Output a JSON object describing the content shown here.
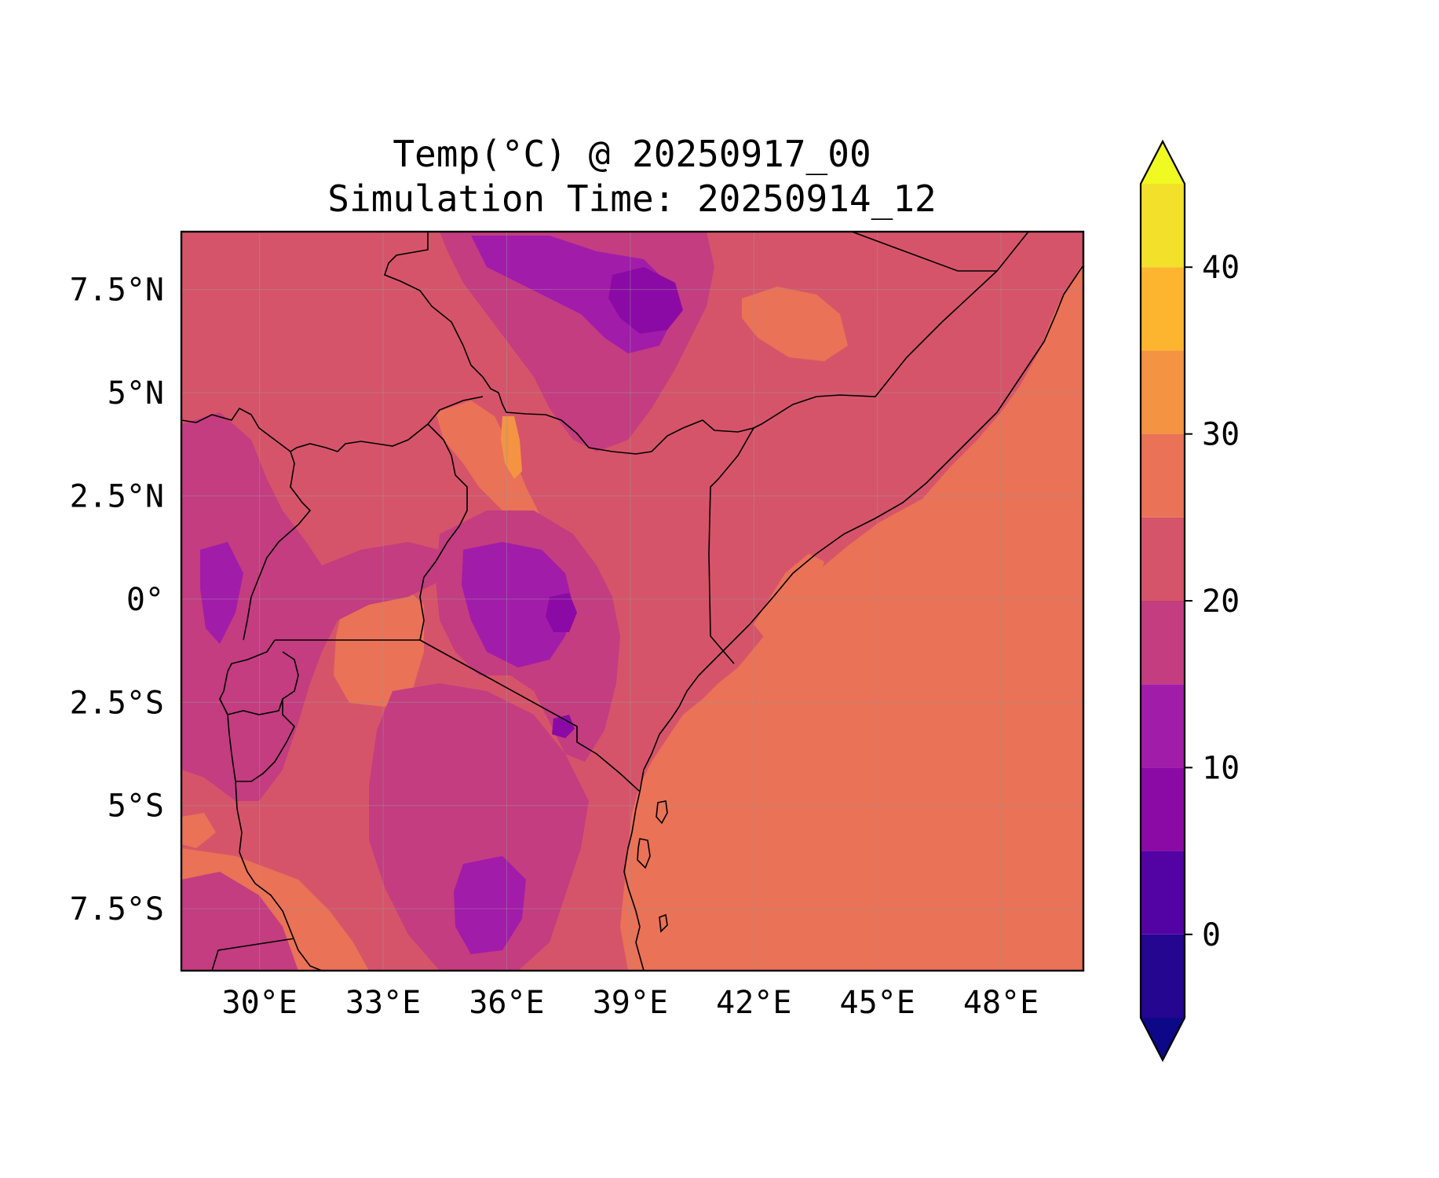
{
  "title": {
    "line1": "Temp(°C) @ 20250917_00",
    "line2": "Simulation Time: 20250914_12"
  },
  "map": {
    "x_ticks": [
      "30°E",
      "33°E",
      "36°E",
      "39°E",
      "42°E",
      "45°E",
      "48°E"
    ],
    "y_ticks": [
      "7.5°N",
      "5°N",
      "2.5°N",
      "0°",
      "2.5°S",
      "5°S",
      "7.5°S"
    ],
    "x_tick_values": [
      30,
      33,
      36,
      39,
      42,
      45,
      48
    ],
    "y_tick_values": [
      7.5,
      5,
      2.5,
      0,
      -2.5,
      -5,
      -7.5
    ],
    "lon_range": [
      28.1,
      50.0
    ],
    "lat_range": [
      -9.0,
      8.9
    ],
    "gridlines": true
  },
  "colorbar": {
    "tick_labels": [
      "0",
      "10",
      "20",
      "30",
      "40"
    ],
    "tick_values": [
      0,
      10,
      20,
      30,
      40
    ],
    "levels": [
      -5,
      0,
      5,
      10,
      15,
      20,
      25,
      30,
      35,
      40,
      45
    ],
    "extend": "both",
    "under_color": "#0d0887",
    "over_color": "#f0f921",
    "band_colors": [
      "#240691",
      "#5302a3",
      "#8b0aa5",
      "#a21caa",
      "#c33d80",
      "#d6546a",
      "#e97257",
      "#f49342",
      "#fdb42f",
      "#f3e02a"
    ]
  },
  "fields": {
    "base_color": "#d6546a",
    "ocean_color": "#e97257",
    "cool_color": "#c33d80",
    "colder_color": "#a21caa",
    "coldest_color": "#8b0aa5",
    "warm_color": "#e97257",
    "hot_color": "#f49342",
    "boundary_color": "#000000"
  }
}
